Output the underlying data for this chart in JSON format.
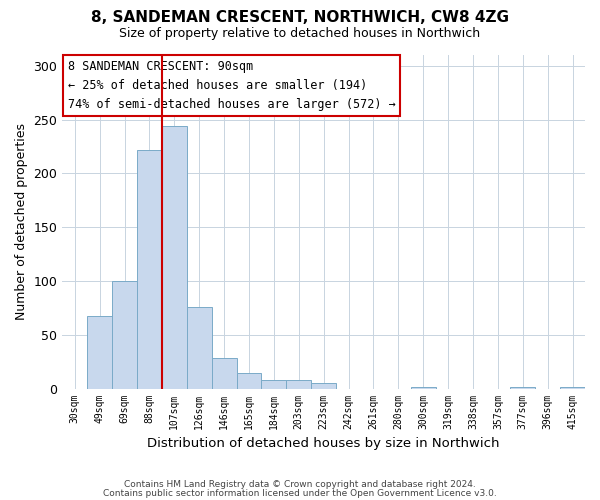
{
  "title": "8, SANDEMAN CRESCENT, NORTHWICH, CW8 4ZG",
  "subtitle": "Size of property relative to detached houses in Northwich",
  "xlabel": "Distribution of detached houses by size in Northwich",
  "ylabel": "Number of detached properties",
  "bar_labels": [
    "30sqm",
    "49sqm",
    "69sqm",
    "88sqm",
    "107sqm",
    "126sqm",
    "146sqm",
    "165sqm",
    "184sqm",
    "203sqm",
    "223sqm",
    "242sqm",
    "261sqm",
    "280sqm",
    "300sqm",
    "319sqm",
    "338sqm",
    "357sqm",
    "377sqm",
    "396sqm",
    "415sqm"
  ],
  "bar_values": [
    0,
    67,
    100,
    222,
    244,
    76,
    28,
    14,
    8,
    8,
    5,
    0,
    0,
    0,
    1,
    0,
    0,
    0,
    1,
    0,
    1
  ],
  "bar_color": "#c8d8ed",
  "bar_edge_color": "#7aaac8",
  "ylim": [
    0,
    310
  ],
  "yticks": [
    0,
    50,
    100,
    150,
    200,
    250,
    300
  ],
  "annotation_title": "8 SANDEMAN CRESCENT: 90sqm",
  "annotation_line1": "← 25% of detached houses are smaller (194)",
  "annotation_line2": "74% of semi-detached houses are larger (572) →",
  "annotation_box_color": "#ffffff",
  "annotation_box_edge_color": "#cc0000",
  "vline_color": "#cc0000",
  "vline_x": 3.5,
  "footer1": "Contains HM Land Registry data © Crown copyright and database right 2024.",
  "footer2": "Contains public sector information licensed under the Open Government Licence v3.0.",
  "background_color": "#ffffff",
  "grid_color": "#c8d4e0"
}
